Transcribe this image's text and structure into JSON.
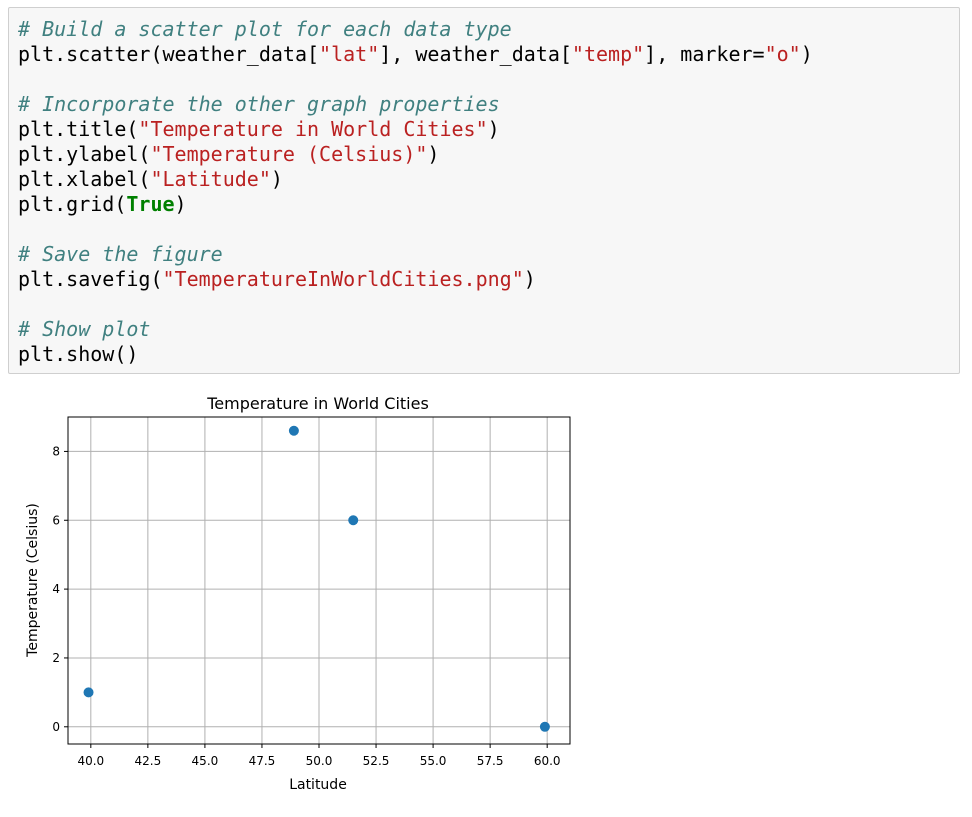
{
  "notebook": {
    "code_lines": [
      [
        {
          "t": "# Build a scatter plot for each data type",
          "k": "comment"
        }
      ],
      [
        {
          "t": "plt.scatter(weather_data[",
          "k": "plain"
        },
        {
          "t": "\"lat\"",
          "k": "string"
        },
        {
          "t": "], weather_data[",
          "k": "plain"
        },
        {
          "t": "\"temp\"",
          "k": "string"
        },
        {
          "t": "], marker=",
          "k": "plain"
        },
        {
          "t": "\"o\"",
          "k": "string"
        },
        {
          "t": ")",
          "k": "plain"
        }
      ],
      [],
      [
        {
          "t": "# Incorporate the other graph properties",
          "k": "comment"
        }
      ],
      [
        {
          "t": "plt.title(",
          "k": "plain"
        },
        {
          "t": "\"Temperature in World Cities\"",
          "k": "string"
        },
        {
          "t": ")",
          "k": "plain"
        }
      ],
      [
        {
          "t": "plt.ylabel(",
          "k": "plain"
        },
        {
          "t": "\"Temperature (Celsius)\"",
          "k": "string"
        },
        {
          "t": ")",
          "k": "plain"
        }
      ],
      [
        {
          "t": "plt.xlabel(",
          "k": "plain"
        },
        {
          "t": "\"Latitude\"",
          "k": "string"
        },
        {
          "t": ")",
          "k": "plain"
        }
      ],
      [
        {
          "t": "plt.grid(",
          "k": "plain"
        },
        {
          "t": "True",
          "k": "keyword"
        },
        {
          "t": ")",
          "k": "plain"
        }
      ],
      [],
      [
        {
          "t": "# Save the figure",
          "k": "comment"
        }
      ],
      [
        {
          "t": "plt.savefig(",
          "k": "plain"
        },
        {
          "t": "\"TemperatureInWorldCities.png\"",
          "k": "string"
        },
        {
          "t": ")",
          "k": "plain"
        }
      ],
      [],
      [
        {
          "t": "# Show plot",
          "k": "comment"
        }
      ],
      [
        {
          "t": "plt.show()",
          "k": "plain"
        }
      ]
    ],
    "colors": {
      "comment": "#408080",
      "string": "#ba2121",
      "keyword": "#008000",
      "cell_background": "#f7f7f7",
      "cell_border": "#cfcfcf"
    }
  },
  "chart_data": {
    "type": "scatter",
    "title": "Temperature in World Cities",
    "xlabel": "Latitude",
    "ylabel": "Temperature (Celsius)",
    "x": [
      39.9,
      48.9,
      51.5,
      59.9
    ],
    "y": [
      1.0,
      8.6,
      6.0,
      0.0
    ],
    "xlim": [
      39.0,
      61.0
    ],
    "ylim": [
      -0.5,
      9.0
    ],
    "xticks": [
      40.0,
      42.5,
      45.0,
      47.5,
      50.0,
      52.5,
      55.0,
      57.5,
      60.0
    ],
    "xtick_labels": [
      "40.0",
      "42.5",
      "45.0",
      "47.5",
      "50.0",
      "52.5",
      "55.0",
      "57.5",
      "60.0"
    ],
    "yticks": [
      0,
      2,
      4,
      6,
      8
    ],
    "ytick_labels": [
      "0",
      "2",
      "4",
      "6",
      "8"
    ],
    "grid": true,
    "marker": "o",
    "point_color": "#1f77b4"
  }
}
